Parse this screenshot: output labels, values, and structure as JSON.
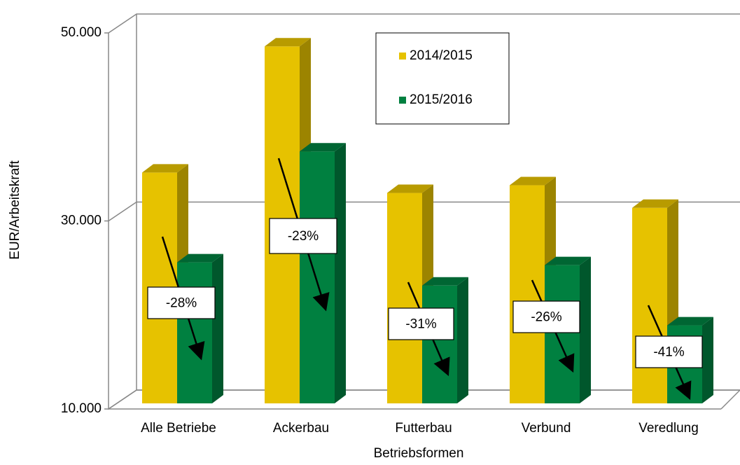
{
  "chart_data": {
    "type": "bar3d",
    "x_label": "Betriebsformen",
    "y_label": "EUR/Arbeitskraft",
    "categories": [
      "Alle Betriebe",
      "Ackerbau",
      "Futterbau",
      "Verbund",
      "Veredlung"
    ],
    "series": [
      {
        "name": "2014/2015",
        "color": "#e6c200",
        "values": [
          34550,
          47970,
          32380,
          33200,
          30800
        ]
      },
      {
        "name": "2015/2016",
        "color": "#008040",
        "values": [
          25000,
          36800,
          22530,
          24700,
          18300
        ]
      }
    ],
    "annotations": [
      "-28%",
      "-23%",
      "-31%",
      "-26%",
      "-41%"
    ],
    "ylim": [
      10000,
      50000
    ],
    "yticks": [
      {
        "value": 10000,
        "label": "10.000"
      },
      {
        "value": 30000,
        "label": "30.000"
      },
      {
        "value": 50000,
        "label": "50.000"
      }
    ],
    "grid": true
  }
}
